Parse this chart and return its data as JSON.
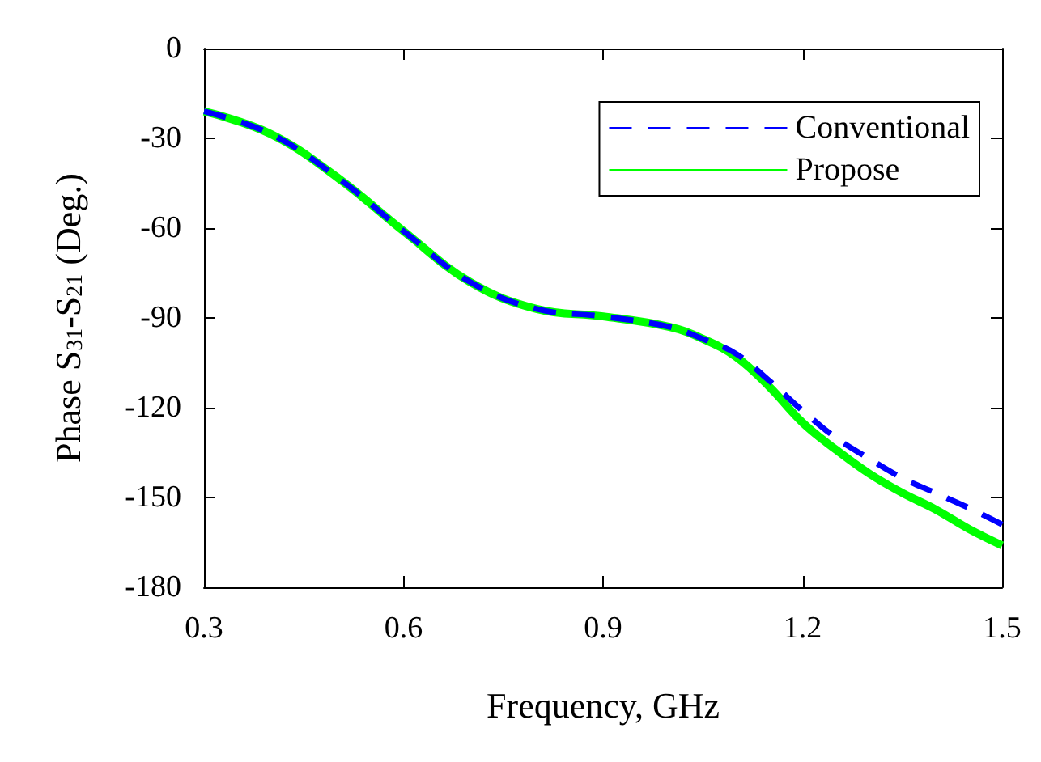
{
  "chart_data": {
    "type": "line",
    "xlabel": "Frequency, GHz",
    "ylabel": "Phase S$_{31}$-S$_{21}$ (Deg.)",
    "x": [
      0.3,
      0.4,
      0.5,
      0.6,
      0.7,
      0.8,
      0.9,
      1.0,
      1.05,
      1.1,
      1.15,
      1.2,
      1.25,
      1.3,
      1.35,
      1.4,
      1.45,
      1.5
    ],
    "series": [
      {
        "name": "Conventional",
        "color": "#0000ff",
        "line_style": "dashed",
        "values": [
          -21,
          -28.5,
          -43,
          -61,
          -78,
          -87,
          -89.5,
          -93,
          -97,
          -102,
          -111,
          -121,
          -130,
          -137,
          -143.5,
          -148.5,
          -153.5,
          -159
        ]
      },
      {
        "name": "Propose",
        "color": "#00ff00",
        "line_style": "solid",
        "values": [
          -21,
          -28.5,
          -43,
          -61,
          -78,
          -87,
          -89.5,
          -93,
          -97,
          -103,
          -113,
          -125,
          -134,
          -142,
          -148.5,
          -154,
          -160.5,
          -166
        ]
      }
    ],
    "xlim": [
      0.3,
      1.5
    ],
    "xticks": [
      0.3,
      0.6,
      0.9,
      1.2,
      1.5
    ],
    "ylim": [
      -180,
      0
    ],
    "yticks": [
      -180,
      -150,
      -120,
      -90,
      -60,
      -30,
      0
    ],
    "grid": false,
    "legend": "top right",
    "marker": "none"
  }
}
